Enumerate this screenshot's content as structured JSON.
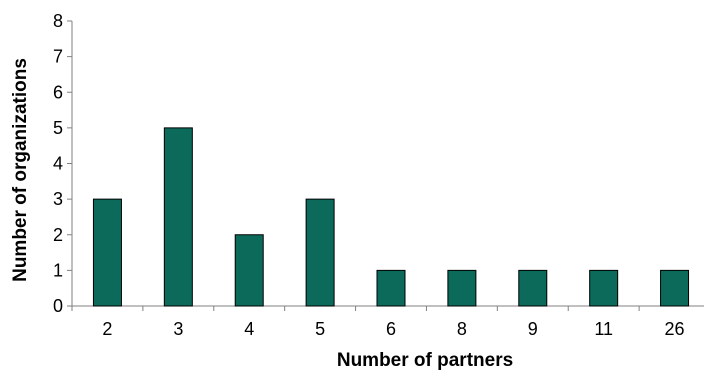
{
  "chart_data": {
    "type": "bar",
    "categories": [
      "2",
      "3",
      "4",
      "5",
      "6",
      "8",
      "9",
      "11",
      "26"
    ],
    "values": [
      3,
      5,
      2,
      3,
      1,
      1,
      1,
      1,
      1
    ],
    "xlabel": "Number of partners",
    "ylabel": "Number of organizations",
    "ylim": [
      0,
      8
    ],
    "yticks": [
      "0",
      "1",
      "2",
      "3",
      "4",
      "5",
      "6",
      "7",
      "8"
    ],
    "bar_color": "#0b6a5a",
    "grid": false
  }
}
